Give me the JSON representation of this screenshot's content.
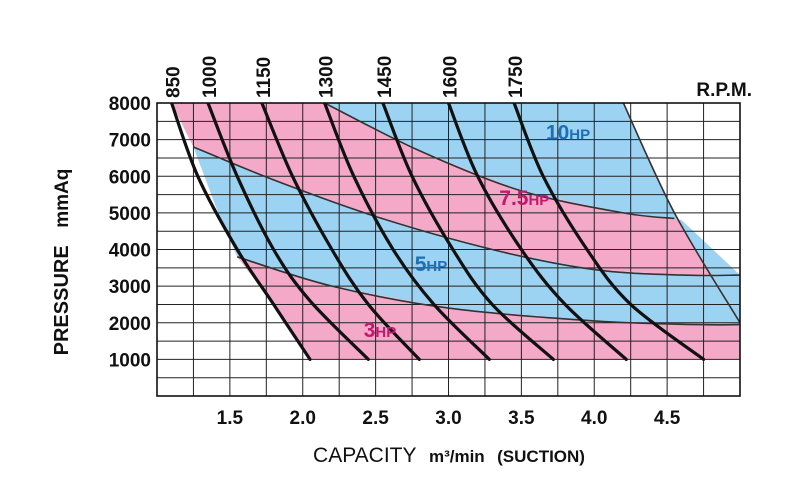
{
  "chart_data": {
    "type": "area",
    "title": "",
    "xlabel": "CAPACITY",
    "xunit": "m³/min",
    "xnote": "(SUCTION)",
    "ylabel": "PRESSURE",
    "yunit": "mmAq",
    "xlim": [
      1.0,
      5.0
    ],
    "ylim": [
      0,
      8000
    ],
    "grid": true,
    "x_ticks": [
      1.5,
      2.0,
      2.5,
      3.0,
      3.5,
      4.0,
      4.5
    ],
    "x_tick_labels": [
      "1.5",
      "2.0",
      "2.5",
      "3.0",
      "3.5",
      "4.0",
      "4.5"
    ],
    "y_ticks": [
      1000,
      2000,
      3000,
      4000,
      5000,
      6000,
      7000,
      8000
    ],
    "y_tick_labels": [
      "1000",
      "2000",
      "3000",
      "4000",
      "5000",
      "6000",
      "7000",
      "8000"
    ],
    "rpm_label": "R.P.M.",
    "rpm_curves": [
      {
        "label": "850",
        "points": [
          [
            1.1,
            8000
          ],
          [
            1.28,
            6000
          ],
          [
            1.55,
            4000
          ],
          [
            1.8,
            2500
          ],
          [
            2.05,
            1000
          ]
        ]
      },
      {
        "label": "1000",
        "points": [
          [
            1.35,
            8000
          ],
          [
            1.55,
            6000
          ],
          [
            1.8,
            4000
          ],
          [
            2.05,
            2600
          ],
          [
            2.45,
            1000
          ]
        ]
      },
      {
        "label": "1150",
        "points": [
          [
            1.72,
            8000
          ],
          [
            1.93,
            6000
          ],
          [
            2.2,
            4000
          ],
          [
            2.45,
            2500
          ],
          [
            2.8,
            1000
          ]
        ]
      },
      {
        "label": "1300",
        "points": [
          [
            2.15,
            8000
          ],
          [
            2.35,
            6000
          ],
          [
            2.62,
            4000
          ],
          [
            2.9,
            2500
          ],
          [
            3.28,
            1000
          ]
        ]
      },
      {
        "label": "1450",
        "points": [
          [
            2.55,
            8000
          ],
          [
            2.75,
            6000
          ],
          [
            3.03,
            4000
          ],
          [
            3.3,
            2500
          ],
          [
            3.72,
            1000
          ]
        ]
      },
      {
        "label": "1600",
        "points": [
          [
            3.0,
            8000
          ],
          [
            3.2,
            6000
          ],
          [
            3.5,
            4000
          ],
          [
            3.8,
            2500
          ],
          [
            4.22,
            1000
          ]
        ]
      },
      {
        "label": "1750",
        "points": [
          [
            3.45,
            8000
          ],
          [
            3.65,
            6000
          ],
          [
            3.95,
            4000
          ],
          [
            4.25,
            2500
          ],
          [
            4.75,
            1000
          ]
        ]
      }
    ],
    "hp_bands": [
      {
        "label": "3HP",
        "color": "#f4a9c8",
        "text_color": "#c4176e"
      },
      {
        "label": "5HP",
        "color": "#9dd3f2",
        "text_color": "#1d6fb8"
      },
      {
        "label": "7.5HP",
        "color": "#f4a9c8",
        "text_color": "#c4176e"
      },
      {
        "label": "10HP",
        "color": "#9dd3f2",
        "text_color": "#1d6fb8"
      }
    ],
    "hp_boundaries": [
      {
        "name": "3-5",
        "points": [
          [
            1.55,
            3800
          ],
          [
            2.2,
            3000
          ],
          [
            3.0,
            2400
          ],
          [
            4.0,
            2050
          ],
          [
            4.7,
            1950
          ],
          [
            5.0,
            1950
          ]
        ]
      },
      {
        "name": "5-7.5",
        "points": [
          [
            1.25,
            6800
          ],
          [
            1.8,
            5900
          ],
          [
            2.5,
            4900
          ],
          [
            3.3,
            4000
          ],
          [
            4.0,
            3450
          ],
          [
            4.6,
            3300
          ],
          [
            5.0,
            3300
          ]
        ]
      },
      {
        "name": "7.5-10",
        "points": [
          [
            2.15,
            8000
          ],
          [
            2.8,
            6700
          ],
          [
            3.5,
            5600
          ],
          [
            4.2,
            5000
          ],
          [
            4.55,
            4850
          ]
        ]
      },
      {
        "name": "10-right",
        "points": [
          [
            4.2,
            8000
          ],
          [
            4.55,
            5000
          ],
          [
            5.0,
            2000
          ]
        ]
      }
    ]
  }
}
